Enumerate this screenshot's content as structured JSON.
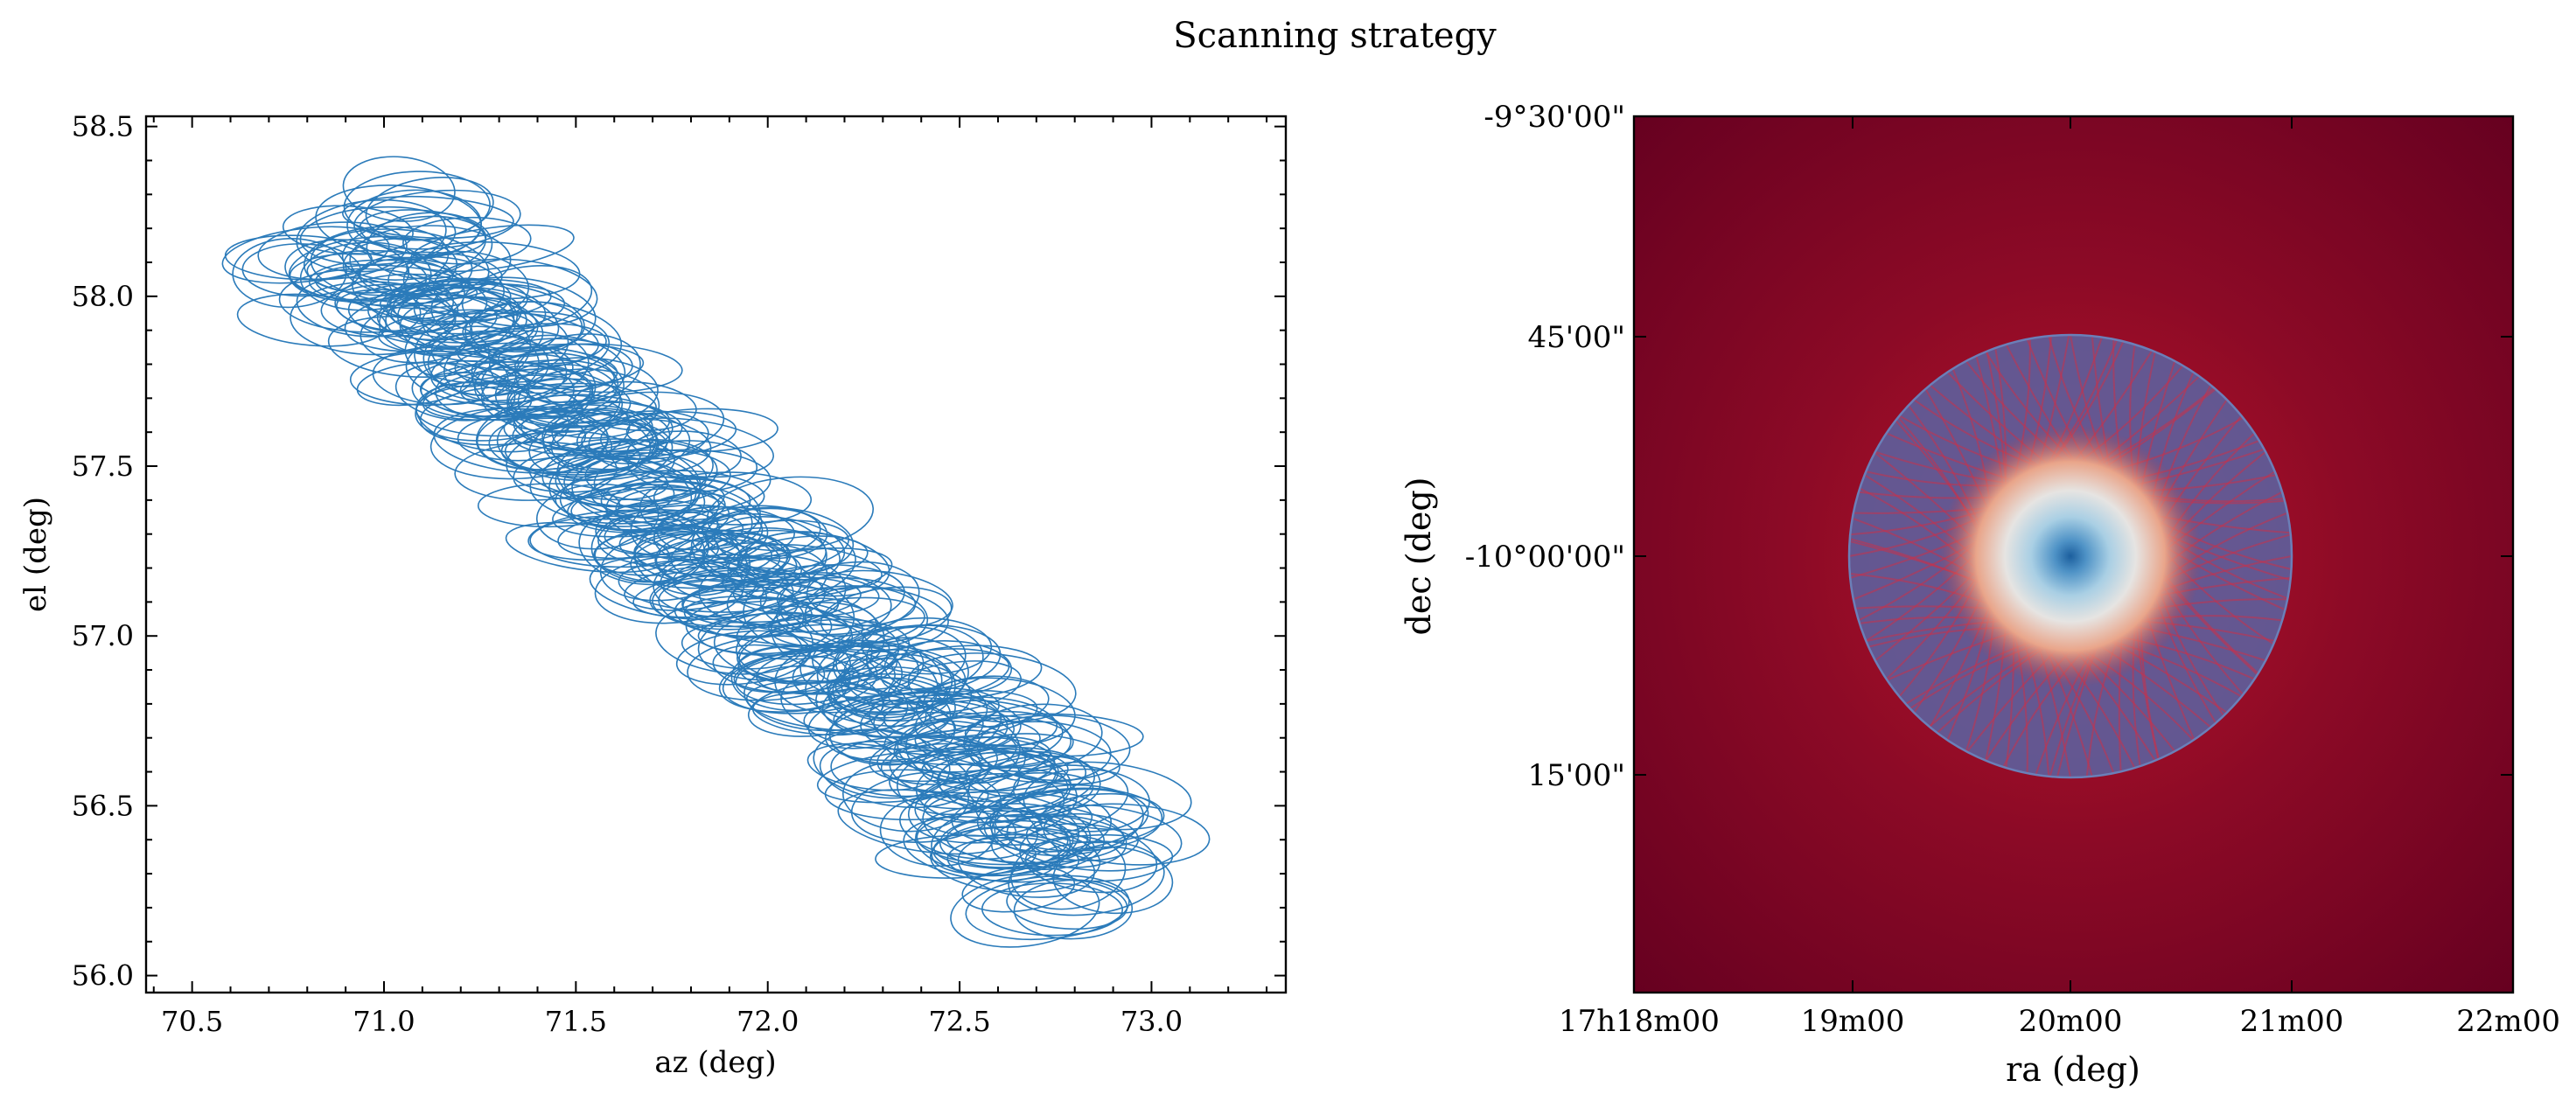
{
  "figure": {
    "title": "Scanning strategy"
  },
  "chart_data": [
    {
      "type": "scatter",
      "marker": "ellipse-outline",
      "description_color": "#2b7bba",
      "xlabel": "az (deg)",
      "ylabel": "el (deg)",
      "xlim": [
        70.38,
        73.35
      ],
      "ylim": [
        55.95,
        58.53
      ],
      "xticks": [
        70.5,
        71.0,
        71.5,
        72.0,
        72.5,
        73.0
      ],
      "yticks": [
        56.0,
        56.5,
        57.0,
        57.5,
        58.0,
        58.5
      ],
      "xtick_labels": [
        "70.5",
        "71.0",
        "71.5",
        "72.0",
        "72.5",
        "73.0"
      ],
      "ytick_labels": [
        "56.0",
        "56.5",
        "57.0",
        "57.5",
        "58.0",
        "58.5"
      ],
      "track_start": [
        70.9,
        58.2
      ],
      "track_end": [
        72.85,
        56.3
      ],
      "ellipse_semi_axes_deg": [
        0.2,
        0.08
      ],
      "num_ellipses": 360,
      "grid": false
    },
    {
      "type": "heatmap",
      "colormap": "RdBu",
      "xlabel": "ra (deg)",
      "ylabel": "dec (deg)",
      "xtick_labels": [
        "17h18m00",
        "19m00",
        "20m00",
        "21m00",
        "22m00"
      ],
      "ytick_labels": [
        "-9°30'00\"",
        "45'00\"",
        "-10°00'00\"",
        "15'00\""
      ],
      "center": [
        "17h20m00",
        "-10°00'00\""
      ],
      "scan_pattern": "daisy",
      "scan_radius_arcmin": 15,
      "background_color": "#6b0020",
      "scan_overlay_color": "#4a6aa8",
      "grid": false
    }
  ]
}
